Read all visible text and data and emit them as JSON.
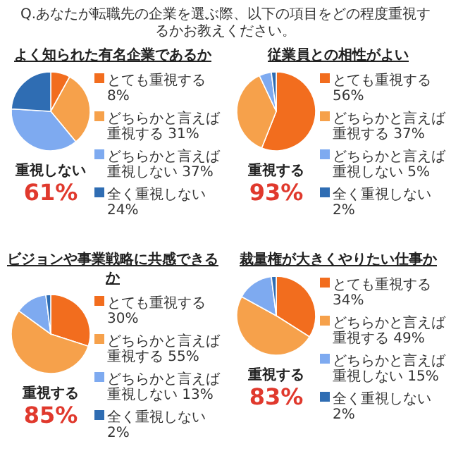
{
  "chart_data": [
    {
      "type": "other",
      "title": "Q.あなたが転職先の企業を選ぶ際、以下の項目をどの程度重視するかお教えください。"
    },
    {
      "type": "pie",
      "title": "よく知られた有名企業であるか",
      "categories": [
        "とても重視する",
        "どちらかと言えば重視する",
        "どちらかと言えば重視しない",
        "全く重視しない"
      ],
      "values": [
        8,
        31,
        37,
        24
      ],
      "value_labels": [
        "8%",
        "31%",
        "37%",
        "24%"
      ],
      "colors": [
        "#f26d1e",
        "#f6a14b",
        "#7eaaf0",
        "#2f6db3"
      ],
      "legend": "right",
      "annotations": [
        "重視しない",
        "61%"
      ]
    },
    {
      "type": "pie",
      "title": "従業員との相性がよい",
      "categories": [
        "とても重視する",
        "どちらかと言えば重視する",
        "どちらかと言えば重視しない",
        "全く重視しない"
      ],
      "values": [
        56,
        37,
        5,
        2
      ],
      "value_labels": [
        "56%",
        "37%",
        "5%",
        "2%"
      ],
      "colors": [
        "#f26d1e",
        "#f6a14b",
        "#7eaaf0",
        "#2f6db3"
      ],
      "legend": "right",
      "annotations": [
        "重視する",
        "93%"
      ]
    },
    {
      "type": "pie",
      "title": "ビジョンや事業戦略に共感できるか",
      "categories": [
        "とても重視する",
        "どちらかと言えば重視する",
        "どちらかと言えば重視しない",
        "全く重視しない"
      ],
      "values": [
        30,
        55,
        13,
        2
      ],
      "value_labels": [
        "30%",
        "55%",
        "13%",
        "2%"
      ],
      "colors": [
        "#f26d1e",
        "#f6a14b",
        "#7eaaf0",
        "#2f6db3"
      ],
      "legend": "right",
      "annotations": [
        "重視する",
        "85%"
      ]
    },
    {
      "type": "pie",
      "title": "裁量権が大きくやりたい仕事か",
      "categories": [
        "とても重視する",
        "どちらかと言えば重視する",
        "どちらかと言えば重視しない",
        "全く重視しない"
      ],
      "values": [
        34,
        49,
        15,
        2
      ],
      "value_labels": [
        "34%",
        "49%",
        "15%",
        "2%"
      ],
      "colors": [
        "#f26d1e",
        "#f6a14b",
        "#7eaaf0",
        "#2f6db3"
      ],
      "legend": "right",
      "annotations": [
        "重視する",
        "83%"
      ]
    }
  ]
}
